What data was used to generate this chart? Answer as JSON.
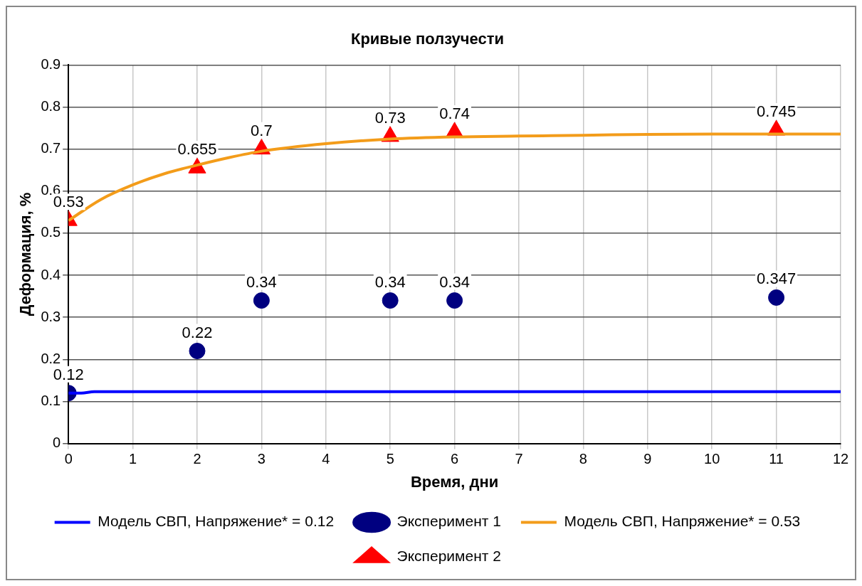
{
  "chart_data": {
    "type": "line",
    "title": "Кривые ползучести",
    "xlabel": "Время, дни",
    "ylabel": "Деформация, %",
    "xlim": [
      0,
      12
    ],
    "xticks": [
      0,
      1,
      2,
      3,
      4,
      5,
      6,
      7,
      8,
      9,
      10,
      11,
      12
    ],
    "ylim": [
      0,
      0.9
    ],
    "yticks": [
      0,
      0.1,
      0.2,
      0.3,
      0.4,
      0.5,
      0.6,
      0.7,
      0.8,
      0.9
    ],
    "grid": true,
    "legend": "bottom",
    "series": [
      {
        "name": "Модель СВП, Напряжение* = 0.12",
        "type": "line",
        "color": "#0000ff",
        "marker": "none",
        "x": [
          0,
          0.2,
          0.4,
          12
        ],
        "values": [
          0.12,
          0.12,
          0.123,
          0.123
        ]
      },
      {
        "name": "Эксперимент 1",
        "type": "scatter",
        "color": "#000080",
        "marker": "circle",
        "x": [
          0,
          2,
          3,
          5,
          6,
          11
        ],
        "values": [
          0.12,
          0.22,
          0.34,
          0.34,
          0.34,
          0.347
        ],
        "value_labels": [
          "0.12",
          "0.22",
          "0.34",
          "0.34",
          "0.34",
          "0.347"
        ]
      },
      {
        "name": "Модель СВП, Напряжение* = 0.53",
        "type": "line",
        "color": "#f39c1a",
        "marker": "none",
        "x": [
          0,
          0.5,
          1,
          1.5,
          2,
          2.5,
          3,
          4,
          5,
          6,
          7,
          8,
          9,
          10,
          12
        ],
        "values": [
          0.53,
          0.58,
          0.615,
          0.642,
          0.662,
          0.68,
          0.695,
          0.713,
          0.724,
          0.729,
          0.731,
          0.733,
          0.735,
          0.736,
          0.736
        ]
      },
      {
        "name": "Эксперимент 2",
        "type": "scatter",
        "color": "#ff0000",
        "marker": "triangle",
        "x": [
          0,
          2,
          3,
          5,
          6,
          11
        ],
        "values": [
          0.53,
          0.655,
          0.7,
          0.73,
          0.74,
          0.745
        ],
        "value_labels": [
          "0.53",
          "0.655",
          "0.7",
          "0.73",
          "0.74",
          "0.745"
        ]
      }
    ]
  }
}
